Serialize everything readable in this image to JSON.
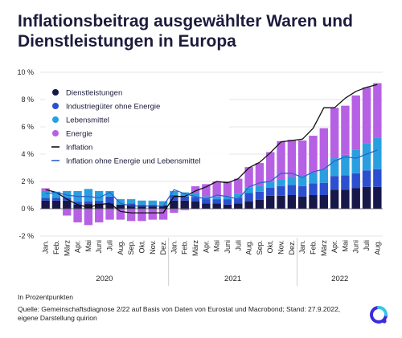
{
  "header": {
    "title": "Inflationsbeitrag ausgewählter Waren und Dienstleistungen in Europa"
  },
  "footer": {
    "note": "In Prozentpunkten",
    "source": "Quelle: Gemeinschaftsdiagnose 2/22 auf Basis von Daten von Eurostat und Macrobond; Stand: 27.9.2022, eigene Darstellung quirion"
  },
  "colors": {
    "dienst": "#17174a",
    "industrie": "#2c4fd0",
    "lebensmittel": "#2a9fdf",
    "energie": "#b660e4",
    "inflation": "#111111",
    "kern": "#2a63cf",
    "logo_a": "#3b2bd9",
    "logo_b": "#38c6e8"
  },
  "icons": {
    "logo": "quirion-logo-icon"
  },
  "chart_data": {
    "type": "bar",
    "stacked": true,
    "categories": [
      "Jan.",
      "Feb.",
      "März",
      "Apr.",
      "Mai",
      "Juni",
      "Juli",
      "Aug.",
      "Sep.",
      "Okt.",
      "Nov.",
      "Dez.",
      "Jan.",
      "Feb.",
      "März",
      "Apr.",
      "Mai",
      "Juni",
      "Juli",
      "Aug.",
      "Sep.",
      "Okt.",
      "Nov.",
      "Dez.",
      "Jan.",
      "Feb.",
      "März",
      "Apr.",
      "Mai",
      "Juni",
      "Juli",
      "Aug."
    ],
    "tick_labels": [
      "Jan.",
      "Feb.",
      "März",
      "Apr.",
      "Mai",
      "Juni",
      "Juli",
      "Aug.",
      "Sep.",
      "Okt.",
      "Nov.",
      "Dez.",
      "Jan.",
      "Feb.",
      "März",
      "Apr.",
      "Mai",
      "Juni",
      "Juli",
      "Aug.",
      "Sep.",
      "Okt.",
      "Nov.",
      "Dez.",
      "Jan.",
      "Feb.",
      "März",
      "Apr.",
      "Mai",
      "Juni",
      "Juli",
      "Aug."
    ],
    "years": [
      {
        "label": "2020",
        "start": 0,
        "end": 11
      },
      {
        "label": "2021",
        "start": 12,
        "end": 23
      },
      {
        "label": "2022",
        "start": 24,
        "end": 31
      }
    ],
    "ylim": [
      -2,
      10
    ],
    "yticks": [
      -2,
      0,
      2,
      4,
      6,
      8,
      10
    ],
    "ytick_labels": [
      "-2 %",
      "0 %",
      "2 %",
      "4 %",
      "6 %",
      "8 %",
      "10 %"
    ],
    "grid": "horizontal",
    "legend_position": "top-left",
    "series": [
      {
        "name": "Dienstleistungen",
        "kind": "bar",
        "values": [
          0.6,
          0.6,
          0.6,
          0.3,
          0.35,
          0.4,
          0.4,
          0.3,
          0.3,
          0.2,
          0.2,
          0.25,
          0.6,
          0.6,
          0.55,
          0.4,
          0.4,
          0.3,
          0.4,
          0.55,
          0.65,
          0.95,
          0.95,
          1.0,
          0.9,
          1.0,
          1.0,
          1.4,
          1.4,
          1.5,
          1.6,
          1.6
        ]
      },
      {
        "name": "Industriegüter ohne Energie",
        "kind": "bar",
        "values": [
          0.2,
          0.2,
          0.2,
          0.2,
          0.2,
          0.2,
          0.5,
          0.0,
          0.1,
          0.1,
          0.1,
          0.0,
          0.4,
          0.3,
          0.3,
          0.3,
          0.3,
          0.4,
          0.4,
          0.6,
          0.6,
          0.6,
          0.7,
          0.75,
          0.75,
          0.85,
          0.9,
          1.0,
          1.05,
          1.1,
          1.2,
          1.3
        ]
      },
      {
        "name": "Lebensmittel",
        "kind": "bar",
        "values": [
          0.5,
          0.45,
          0.5,
          0.8,
          0.9,
          0.7,
          0.4,
          0.4,
          0.3,
          0.3,
          0.3,
          0.3,
          0.3,
          0.3,
          0.3,
          0.2,
          0.2,
          0.2,
          0.3,
          0.4,
          0.4,
          0.4,
          0.5,
          0.6,
          0.75,
          0.8,
          1.0,
          1.3,
          1.5,
          1.7,
          2.0,
          2.3
        ]
      },
      {
        "name": "Energie",
        "kind": "bar",
        "values": [
          0.2,
          0.0,
          -0.5,
          -1.0,
          -1.2,
          -1.0,
          -0.8,
          -0.8,
          -0.9,
          -0.9,
          -0.8,
          -0.8,
          -0.3,
          -0.1,
          0.5,
          0.9,
          1.1,
          1.1,
          1.1,
          1.5,
          1.7,
          2.2,
          2.8,
          2.7,
          2.6,
          2.7,
          3.0,
          3.7,
          3.6,
          4.0,
          4.1,
          4.0
        ]
      },
      {
        "name": "Inflation",
        "kind": "line",
        "values": [
          1.4,
          1.2,
          0.7,
          0.3,
          0.1,
          0.3,
          0.4,
          -0.2,
          -0.3,
          -0.3,
          -0.3,
          -0.3,
          0.9,
          0.9,
          1.3,
          1.6,
          2.0,
          1.9,
          2.2,
          3.0,
          3.4,
          4.1,
          4.9,
          5.0,
          5.1,
          5.9,
          7.4,
          7.4,
          8.1,
          8.6,
          8.9,
          9.1
        ]
      },
      {
        "name": "Inflation ohne Energie und Lebensmittel",
        "kind": "line",
        "values": [
          1.1,
          1.2,
          1.0,
          0.9,
          0.9,
          0.8,
          1.2,
          0.4,
          0.2,
          0.2,
          0.2,
          0.2,
          1.4,
          1.1,
          0.9,
          0.7,
          1.0,
          0.9,
          0.7,
          1.6,
          1.9,
          2.0,
          2.6,
          2.6,
          2.3,
          2.7,
          2.9,
          3.5,
          3.8,
          3.7,
          4.0,
          4.3
        ]
      }
    ]
  }
}
